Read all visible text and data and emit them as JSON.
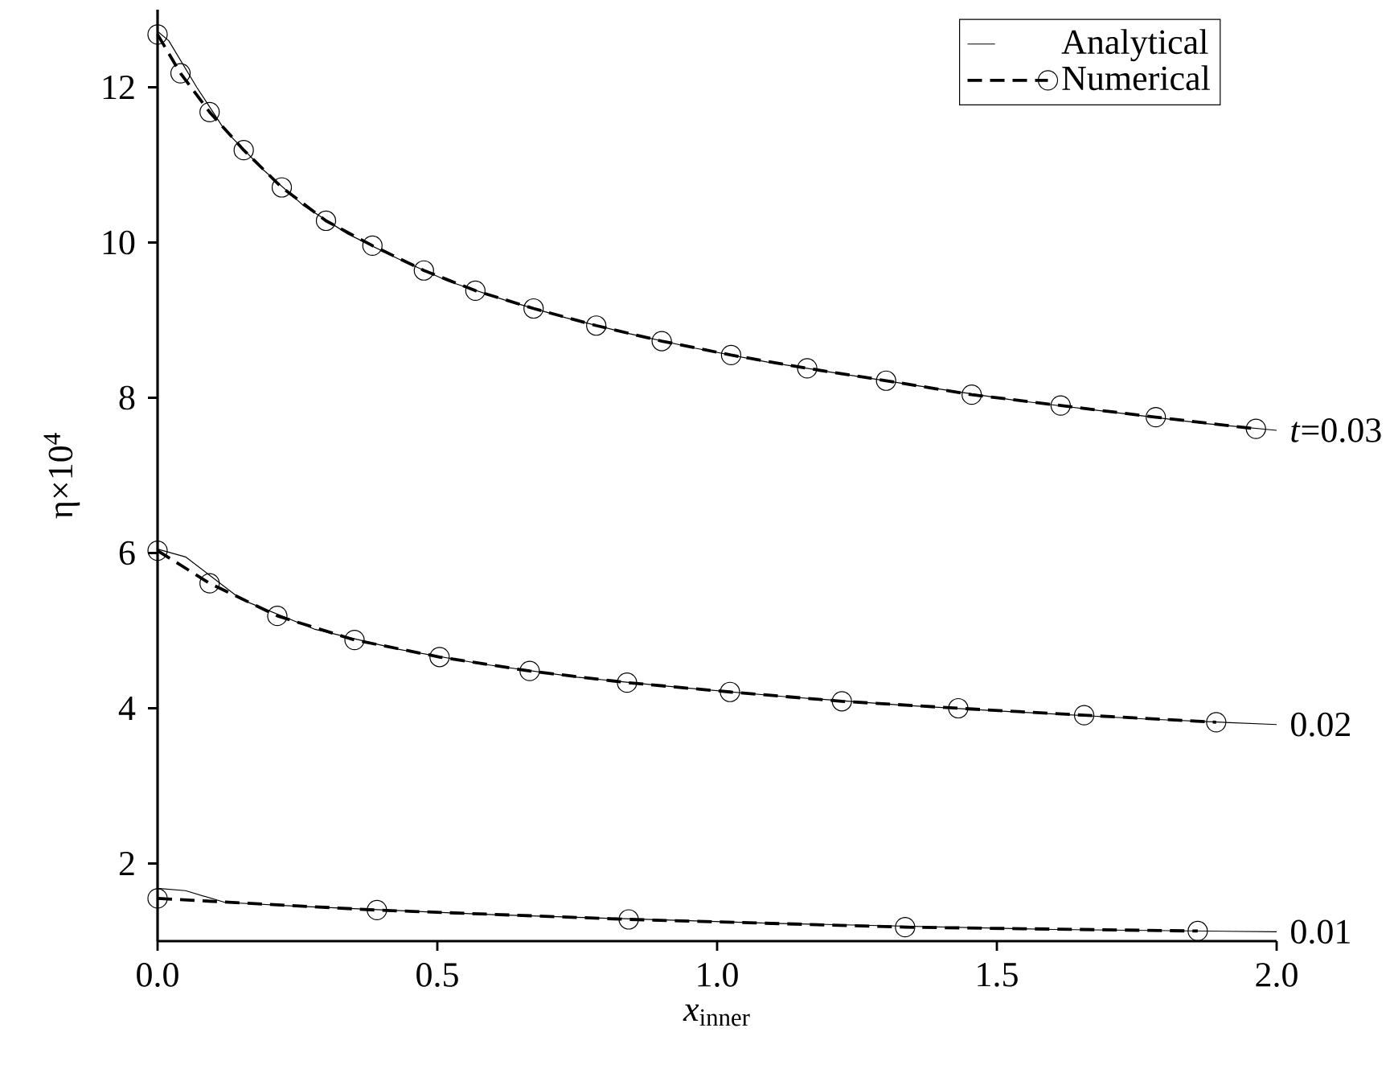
{
  "chart_data": {
    "type": "line",
    "xlabel": "*x*$_{inner}$",
    "ylabel": "η×10$^{4}$",
    "xlim": [
      0,
      2.0
    ],
    "ylim": [
      1,
      13
    ],
    "xticks": [
      {
        "value": 0,
        "label": "0.0"
      },
      {
        "value": 0.5,
        "label": "0.5"
      },
      {
        "value": 1.0,
        "label": "1.0"
      },
      {
        "value": 1.5,
        "label": "1.5"
      },
      {
        "value": 2.0,
        "label": "2.0"
      }
    ],
    "yticks": [
      2,
      4,
      6,
      8,
      10,
      12
    ],
    "legend": "top right",
    "series": [
      {
        "name": "Analytical",
        "color": "#000000",
        "marker": "none",
        "line_style": "solid",
        "x": [
          0,
          0.02,
          0.07,
          0.12,
          0.19,
          0.26,
          0.34,
          0.43,
          0.52,
          0.62,
          0.73,
          0.84,
          0.96,
          1.09,
          1.23,
          1.38,
          1.53,
          1.7,
          1.87,
          2.0
        ],
        "values": [
          12.72,
          12.6,
          12.0,
          11.45,
          10.93,
          10.48,
          10.11,
          9.79,
          9.5,
          9.26,
          9.03,
          8.83,
          8.64,
          8.46,
          8.3,
          8.13,
          7.97,
          7.82,
          7.67,
          7.58
        ]
      },
      {
        "name": "Numerical",
        "color": "#000000",
        "marker": "circle",
        "line_style": "dashed",
        "x": [
          0,
          0.041,
          0.093,
          0.154,
          0.222,
          0.301,
          0.384,
          0.476,
          0.568,
          0.672,
          0.784,
          0.901,
          1.025,
          1.161,
          1.302,
          1.455,
          1.614,
          1.784,
          1.963
        ],
        "values": [
          12.68,
          12.18,
          11.68,
          11.19,
          10.71,
          10.28,
          9.96,
          9.64,
          9.38,
          9.15,
          8.93,
          8.73,
          8.55,
          8.38,
          8.22,
          8.04,
          7.9,
          7.75,
          7.6
        ]
      },
      {
        "color": "#000000",
        "marker": "none",
        "line_style": "solid",
        "x": [
          0,
          0.05,
          0.15,
          0.28,
          0.43,
          0.58,
          0.75,
          0.93,
          1.12,
          1.33,
          1.54,
          1.77,
          2.0
        ],
        "values": [
          6.05,
          5.95,
          5.4,
          5.02,
          4.76,
          4.57,
          4.4,
          4.27,
          4.15,
          4.04,
          3.95,
          3.86,
          3.79
        ]
      },
      {
        "color": "#000000",
        "marker": "circle",
        "line_style": "dashed",
        "x": [
          0,
          0.093,
          0.214,
          0.352,
          0.504,
          0.665,
          0.839,
          1.023,
          1.223,
          1.431,
          1.656,
          1.892
        ],
        "values": [
          6.03,
          5.61,
          5.19,
          4.88,
          4.66,
          4.48,
          4.33,
          4.21,
          4.09,
          4.0,
          3.91,
          3.82
        ]
      },
      {
        "color": "#000000",
        "marker": "none",
        "line_style": "solid",
        "x": [
          0,
          0.05,
          0.12,
          0.25,
          0.6,
          1.1,
          1.6,
          2.0
        ],
        "values": [
          1.68,
          1.65,
          1.5,
          1.45,
          1.34,
          1.23,
          1.15,
          1.12
        ]
      },
      {
        "color": "#000000",
        "marker": "circle",
        "line_style": "dashed",
        "x": [
          0,
          0.392,
          0.842,
          1.336,
          1.859
        ],
        "values": [
          1.55,
          1.4,
          1.28,
          1.18,
          1.13
        ]
      }
    ],
    "annotations": [
      "*t*=0.03",
      "0.02",
      "0.01"
    ]
  }
}
